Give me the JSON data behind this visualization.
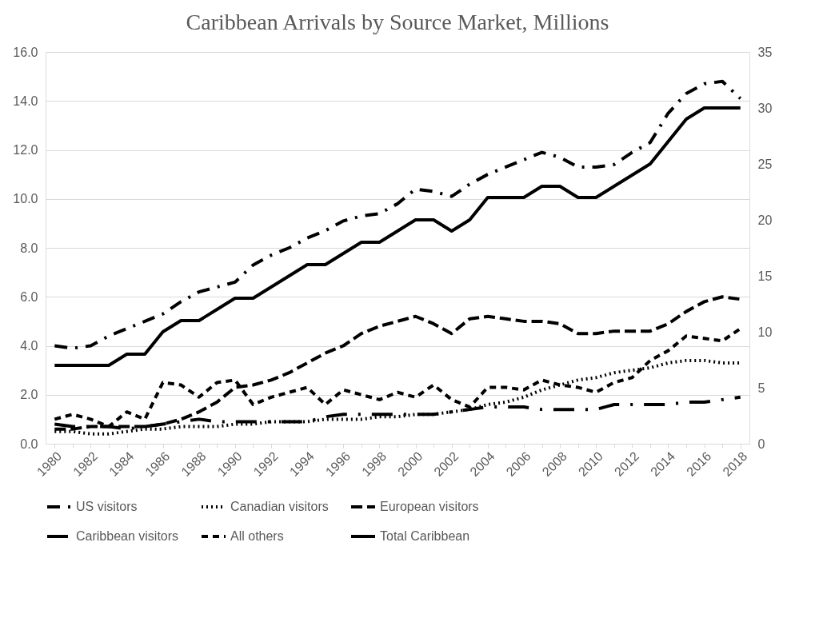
{
  "chart_data": {
    "type": "line",
    "title": "Caribbean Arrivals by Source Market, Millions",
    "categories": [
      "1980",
      null,
      "1982",
      null,
      "1984",
      null,
      "1986",
      null,
      "1988",
      null,
      "1990",
      null,
      "1992",
      null,
      "1994",
      null,
      "1996",
      null,
      "1998",
      null,
      "2000",
      null,
      "2002",
      null,
      "2004",
      null,
      "2006",
      null,
      "2008",
      null,
      "2010",
      null,
      "2012",
      null,
      "2014",
      null,
      "2016",
      null,
      "2018"
    ],
    "series": [
      {
        "name": "US visitors",
        "color": "#000000",
        "line_style": "dashed",
        "values": [
          4.0,
          3.9,
          4.0,
          4.4,
          4.7,
          5.0,
          5.3,
          5.8,
          6.2,
          6.4,
          6.6,
          7.3,
          7.7,
          8.0,
          8.4,
          8.7,
          9.1,
          9.3,
          9.4,
          9.8,
          10.4,
          10.3,
          10.1,
          10.6,
          11.0,
          11.3,
          11.6,
          11.9,
          11.7,
          11.3,
          11.3,
          11.4,
          11.9,
          12.3,
          13.5,
          14.3,
          14.7,
          14.8,
          14.1
        ]
      },
      {
        "name": "Canadian visitors",
        "color": "#000000",
        "line_style": "dotted",
        "values": [
          0.5,
          0.5,
          0.4,
          0.4,
          0.5,
          0.6,
          0.6,
          0.7,
          0.7,
          0.7,
          0.8,
          0.8,
          0.9,
          0.9,
          0.9,
          1.0,
          1.0,
          1.0,
          1.1,
          1.1,
          1.2,
          1.2,
          1.3,
          1.4,
          1.6,
          1.7,
          1.9,
          2.2,
          2.4,
          2.6,
          2.7,
          2.9,
          3.0,
          3.1,
          3.3,
          3.4,
          3.4,
          3.3,
          3.3
        ]
      },
      {
        "name": "European visitors",
        "color": "#000000",
        "line_style": "dashed",
        "values": [
          0.6,
          0.6,
          0.7,
          0.7,
          0.7,
          0.7,
          0.8,
          1.0,
          1.3,
          1.7,
          2.3,
          2.4,
          2.6,
          2.9,
          3.3,
          3.7,
          4.0,
          4.5,
          4.8,
          5.0,
          5.2,
          4.9,
          4.5,
          5.1,
          5.2,
          5.1,
          5.0,
          5.0,
          4.9,
          4.5,
          4.5,
          4.6,
          4.6,
          4.6,
          4.9,
          5.4,
          5.8,
          6.0,
          5.9
        ]
      },
      {
        "name": "Caribbean visitors",
        "color": "#000000",
        "line_style": "dashed",
        "values": [
          0.8,
          0.7,
          0.7,
          0.7,
          0.6,
          0.7,
          0.8,
          0.9,
          1.0,
          0.9,
          0.9,
          0.9,
          0.9,
          0.9,
          0.9,
          1.1,
          1.2,
          1.2,
          1.2,
          1.2,
          1.2,
          1.2,
          1.3,
          1.4,
          1.5,
          1.5,
          1.5,
          1.4,
          1.4,
          1.4,
          1.4,
          1.6,
          1.6,
          1.6,
          1.6,
          1.7,
          1.7,
          1.8,
          1.9
        ]
      },
      {
        "name": "All others",
        "color": "#000000",
        "line_style": "dashed",
        "values": [
          1.0,
          1.2,
          1.0,
          0.7,
          1.3,
          1.0,
          2.5,
          2.4,
          1.9,
          2.5,
          2.6,
          1.6,
          1.9,
          2.1,
          2.3,
          1.6,
          2.2,
          2.0,
          1.8,
          2.1,
          1.9,
          2.4,
          1.8,
          1.5,
          2.3,
          2.3,
          2.2,
          2.6,
          2.4,
          2.3,
          2.1,
          2.5,
          2.7,
          3.4,
          3.8,
          4.4,
          4.3,
          4.2,
          4.7
        ]
      },
      {
        "name": "Total Caribbean",
        "color": "#000000",
        "line_style": "solid",
        "axis": "y2",
        "values": [
          7,
          7,
          7,
          7,
          8,
          8,
          10,
          11,
          11,
          12,
          13,
          13,
          14,
          15,
          16,
          16,
          17,
          18,
          18,
          19,
          20,
          20,
          19,
          20,
          22,
          22,
          22,
          23,
          23,
          22,
          22,
          23,
          24,
          25,
          27,
          29,
          30,
          30,
          30
        ]
      }
    ],
    "ylim": [
      0,
      16
    ],
    "yticks": [
      {
        "value": 0,
        "label": "0.0"
      },
      {
        "value": 2,
        "label": "2.0"
      },
      {
        "value": 4,
        "label": "4.0"
      },
      {
        "value": 6,
        "label": "6.0"
      },
      {
        "value": 8,
        "label": "8.0"
      },
      {
        "value": 10,
        "label": "10.0"
      },
      {
        "value": 12,
        "label": "12.0"
      },
      {
        "value": 14,
        "label": "14.0"
      },
      {
        "value": 16,
        "label": "16.0"
      }
    ],
    "y2lim": [
      0,
      35
    ],
    "y2ticks": [
      0,
      5,
      10,
      15,
      20,
      25,
      30,
      35
    ],
    "grid": "y",
    "legend": "bottom"
  }
}
